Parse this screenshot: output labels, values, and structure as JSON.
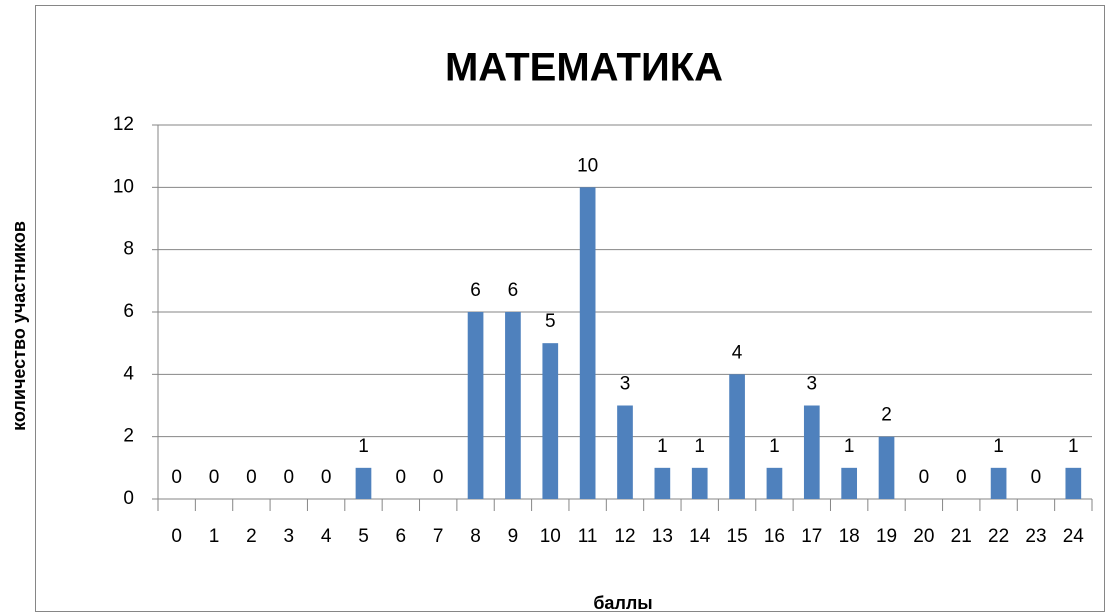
{
  "chart_data": {
    "type": "bar",
    "title": "МАТЕМАТИКА",
    "x_label": "баллы",
    "y_label": "количество участников",
    "categories": [
      0,
      1,
      2,
      3,
      4,
      5,
      6,
      7,
      8,
      9,
      10,
      11,
      12,
      13,
      14,
      15,
      16,
      17,
      18,
      19,
      20,
      21,
      22,
      23,
      24
    ],
    "values": [
      0,
      0,
      0,
      0,
      0,
      1,
      0,
      0,
      6,
      6,
      5,
      10,
      3,
      1,
      1,
      4,
      1,
      3,
      1,
      2,
      0,
      0,
      1,
      0,
      1
    ],
    "color": "#4f81bd",
    "ylim": [
      0,
      12
    ],
    "yticks": [
      0,
      2,
      4,
      6,
      8,
      10,
      12
    ],
    "grid": true,
    "data_labels": true
  }
}
